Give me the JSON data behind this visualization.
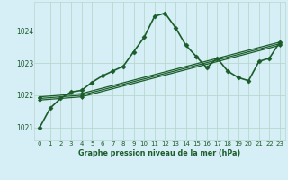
{
  "background_color": "#d6eef5",
  "grid_color": "#b8d8cc",
  "line_color": "#1a5c2a",
  "title": "Graphe pression niveau de la mer (hPa)",
  "xlim": [
    -0.5,
    23.5
  ],
  "ylim": [
    1020.6,
    1024.9
  ],
  "yticks": [
    1021,
    1022,
    1023,
    1024
  ],
  "xtick_labels": [
    "0",
    "1",
    "2",
    "3",
    "4",
    "5",
    "6",
    "7",
    "8",
    "9",
    "10",
    "11",
    "12",
    "13",
    "14",
    "15",
    "16",
    "17",
    "18",
    "19",
    "20",
    "21",
    "22",
    "23"
  ],
  "series": [
    {
      "x": [
        0,
        1,
        2,
        3,
        4,
        5,
        6,
        7,
        8,
        9,
        10,
        11,
        12,
        13,
        14,
        15,
        16,
        17,
        18,
        19,
        20,
        21,
        22,
        23
      ],
      "y": [
        1021.0,
        1021.6,
        1021.9,
        1022.1,
        1022.15,
        1022.4,
        1022.6,
        1022.75,
        1022.9,
        1023.35,
        1023.8,
        1024.45,
        1024.55,
        1024.1,
        1023.55,
        1023.2,
        1022.85,
        1023.15,
        1022.75,
        1022.55,
        1022.45,
        1023.05,
        1023.15,
        1023.65
      ],
      "marker": "D",
      "markersize": 2.5,
      "linewidth": 1.2
    },
    {
      "x": [
        0,
        4,
        23
      ],
      "y": [
        1021.95,
        1022.05,
        1023.65
      ],
      "marker": "D",
      "markersize": 2,
      "linewidth": 0.9
    },
    {
      "x": [
        0,
        4,
        23
      ],
      "y": [
        1021.9,
        1022.0,
        1023.6
      ],
      "marker": "D",
      "markersize": 2,
      "linewidth": 0.9
    },
    {
      "x": [
        0,
        4,
        23
      ],
      "y": [
        1021.85,
        1021.95,
        1023.55
      ],
      "marker": "D",
      "markersize": 2,
      "linewidth": 0.9
    }
  ]
}
